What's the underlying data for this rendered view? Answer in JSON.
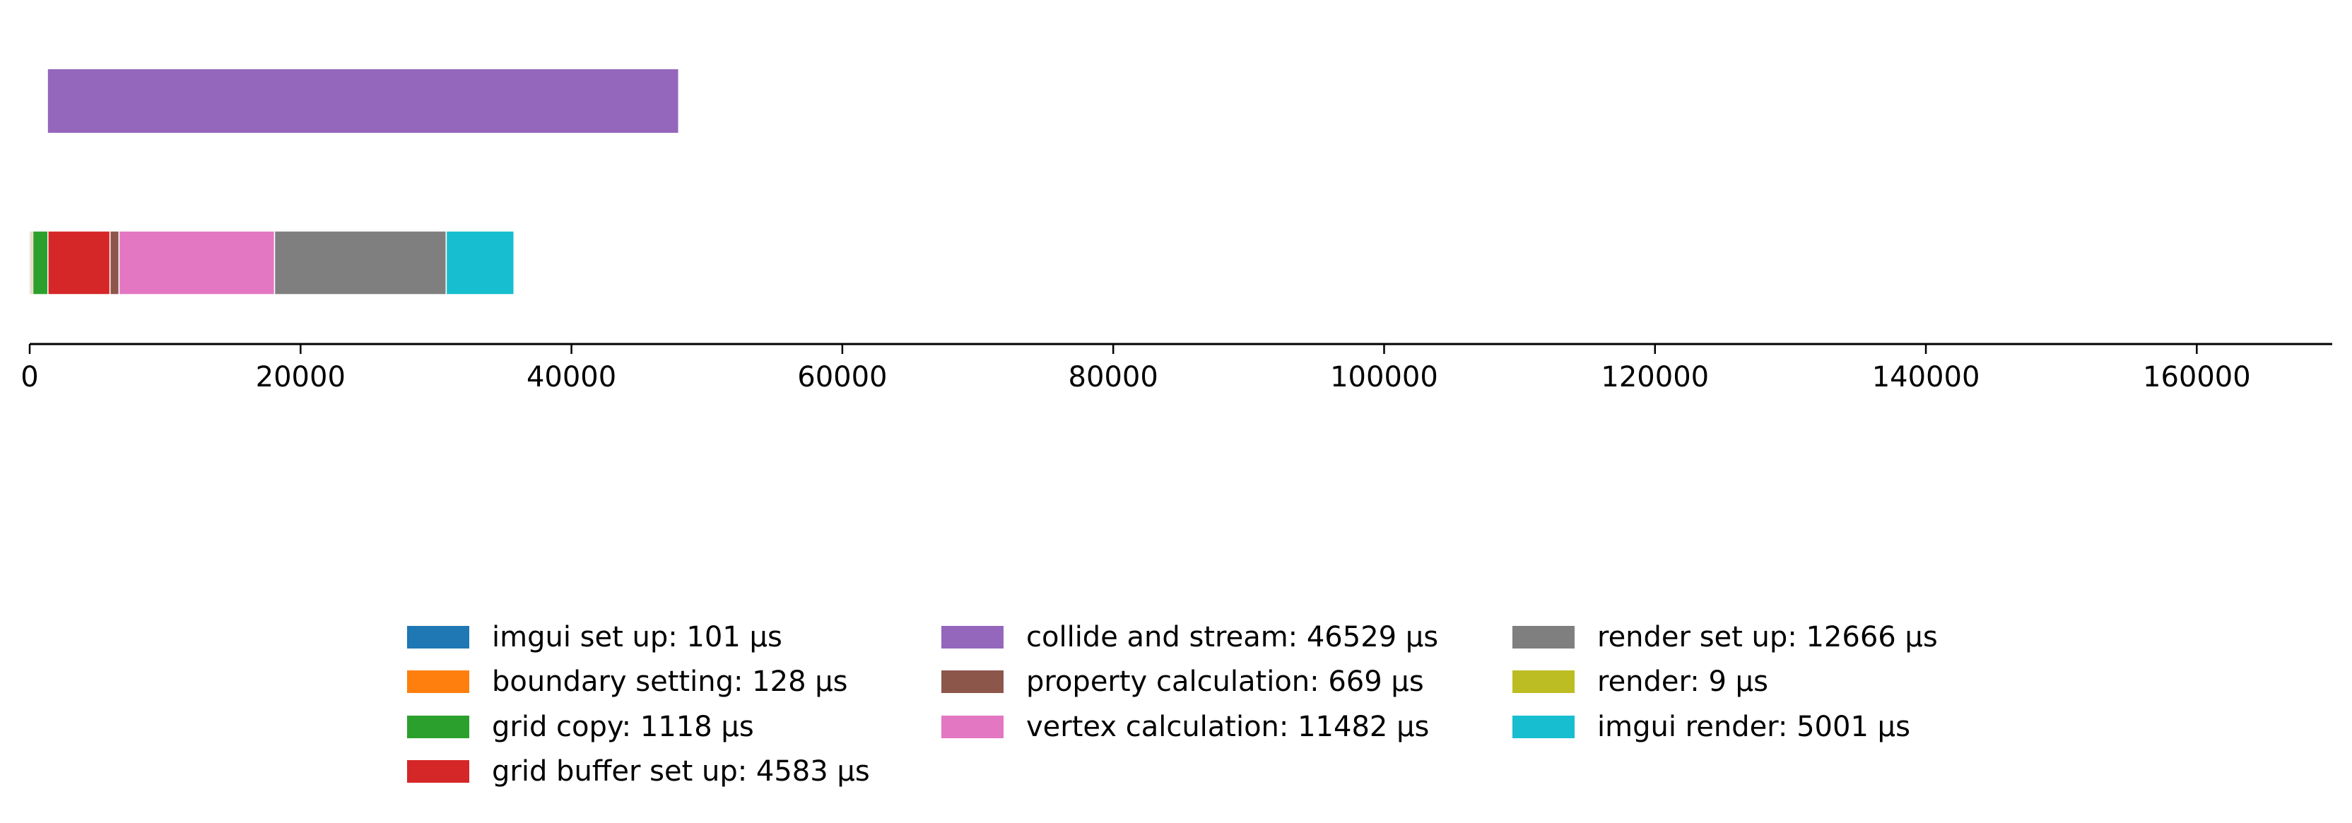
{
  "chart_data": {
    "type": "bar",
    "orientation": "horizontal",
    "stacked": true,
    "xlim": [
      0,
      170000
    ],
    "x_ticks": [
      0,
      20000,
      40000,
      60000,
      80000,
      100000,
      120000,
      140000,
      160000
    ],
    "x_tick_labels": [
      "0",
      "20000",
      "40000",
      "60000",
      "80000",
      "100000",
      "120000",
      "140000",
      "160000"
    ],
    "xlabel": "",
    "ylabel": "",
    "grid": false,
    "legend_position": "bottom",
    "rows": [
      {
        "segments": [
          {
            "series": "collide and stream",
            "start": 1347,
            "value": 46529,
            "color": "#9467bd"
          }
        ]
      },
      {
        "segments": [
          {
            "series": "imgui set up",
            "start": 0,
            "value": 101,
            "color": "#1f77b4"
          },
          {
            "series": "boundary setting",
            "start": 101,
            "value": 128,
            "color": "#ff7f0e"
          },
          {
            "series": "grid copy",
            "start": 229,
            "value": 1118,
            "color": "#2ca02c"
          },
          {
            "series": "grid buffer set up",
            "start": 1347,
            "value": 4583,
            "color": "#d62728"
          },
          {
            "series": "property calculation",
            "start": 5930,
            "value": 669,
            "color": "#8c564b"
          },
          {
            "series": "vertex calculation",
            "start": 6599,
            "value": 11482,
            "color": "#e377c2"
          },
          {
            "series": "render set up",
            "start": 18081,
            "value": 12666,
            "color": "#7f7f7f"
          },
          {
            "series": "render",
            "start": 30747,
            "value": 9,
            "color": "#bcbd22"
          },
          {
            "series": "imgui render",
            "start": 30756,
            "value": 5001,
            "color": "#17becf"
          }
        ]
      }
    ],
    "legend": [
      {
        "label": "imgui set up: 101 µs",
        "color": "#1f77b4"
      },
      {
        "label": "boundary setting: 128 µs",
        "color": "#ff7f0e"
      },
      {
        "label": "grid copy: 1118 µs",
        "color": "#2ca02c"
      },
      {
        "label": "grid buffer set up: 4583 µs",
        "color": "#d62728"
      },
      {
        "label": "collide and stream: 46529 µs",
        "color": "#9467bd"
      },
      {
        "label": "property calculation: 669 µs",
        "color": "#8c564b"
      },
      {
        "label": "vertex calculation: 11482 µs",
        "color": "#e377c2"
      },
      {
        "label": "render set up: 12666 µs",
        "color": "#7f7f7f"
      },
      {
        "label": "render: 9 µs",
        "color": "#bcbd22"
      },
      {
        "label": "imgui render: 5001 µs",
        "color": "#17becf"
      }
    ]
  }
}
